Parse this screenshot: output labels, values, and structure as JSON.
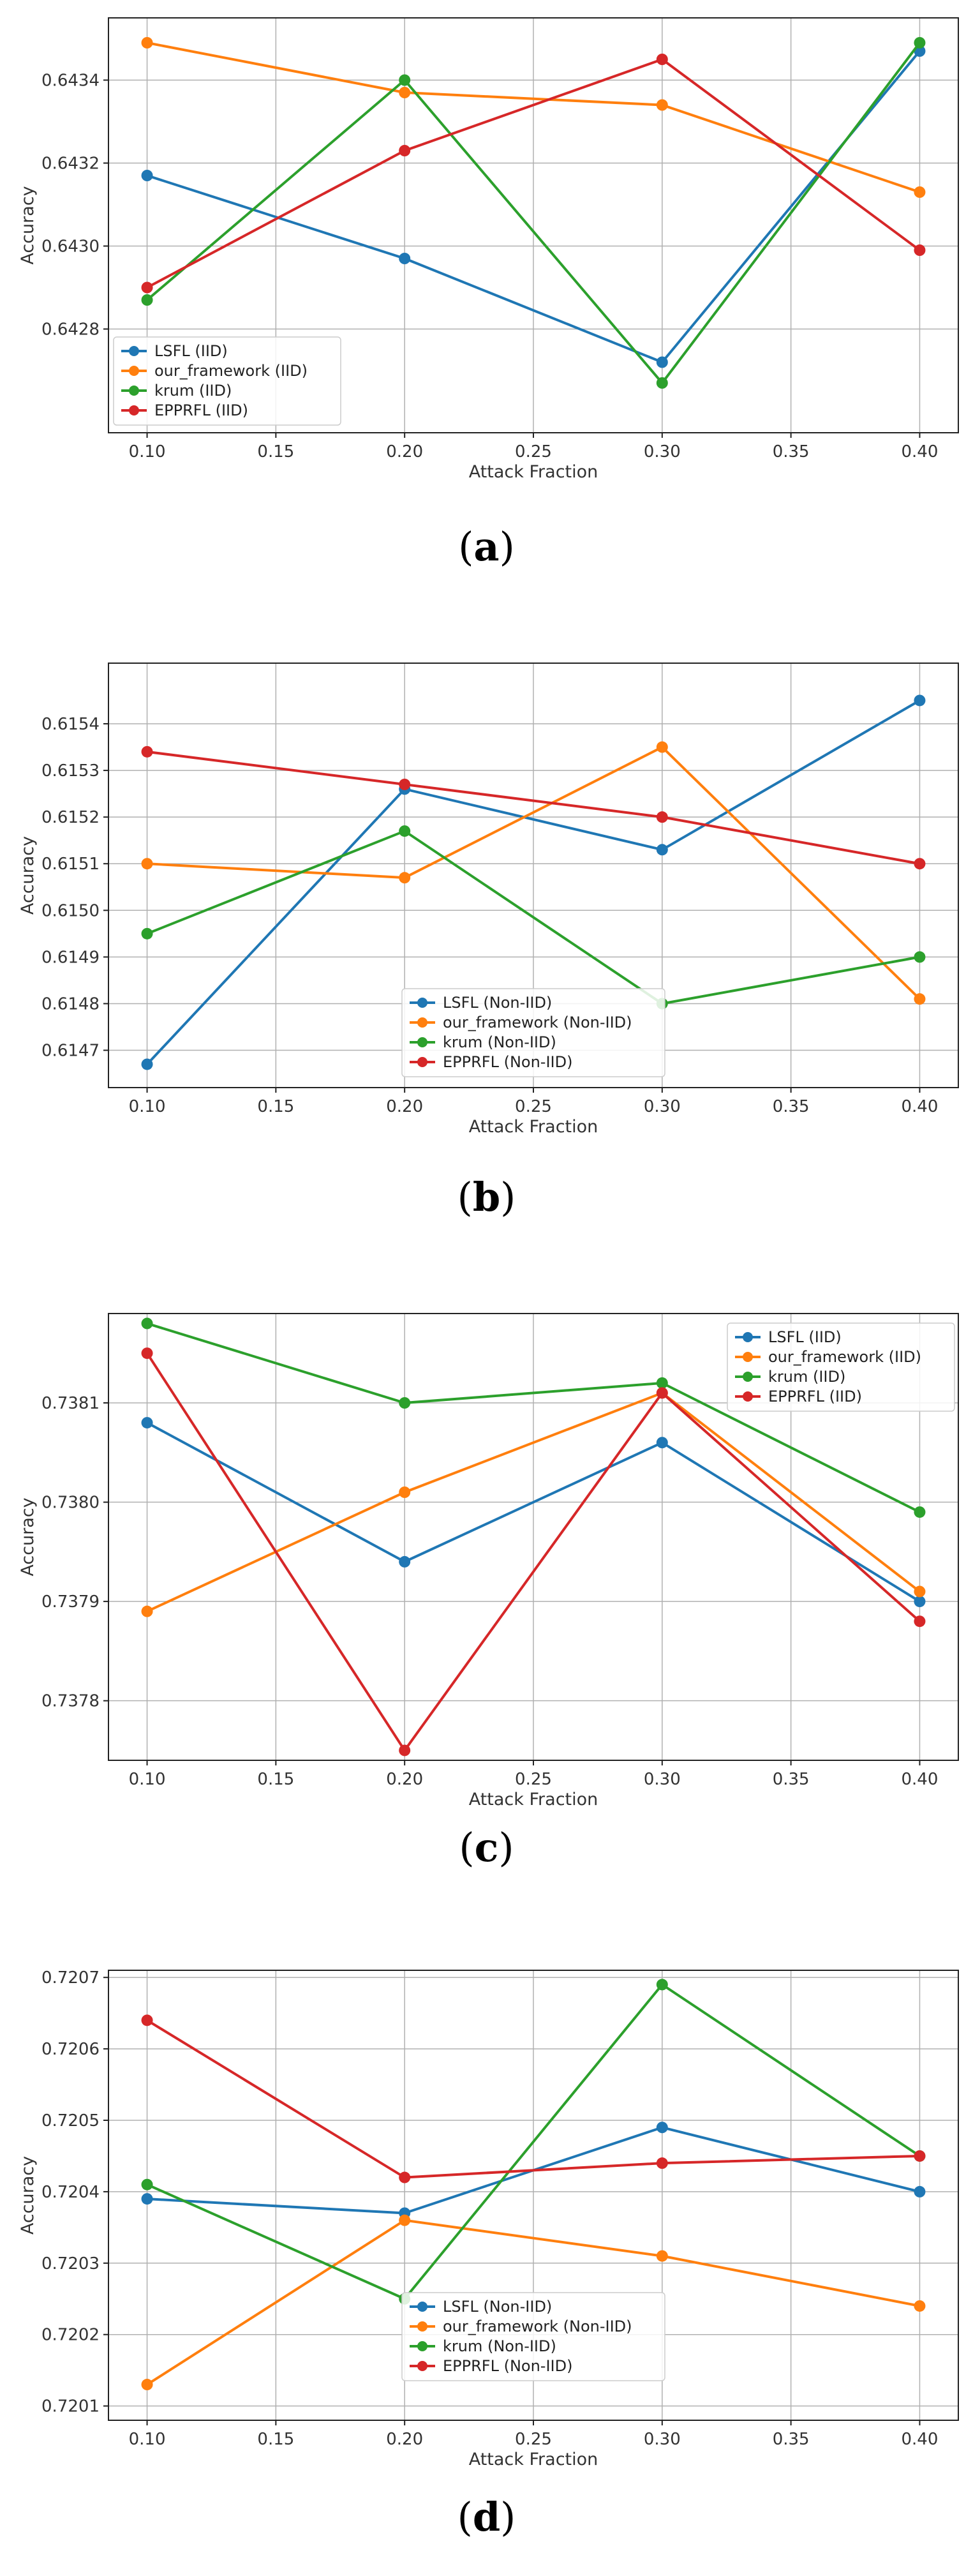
{
  "figure": {
    "panels": [
      {
        "label": "a"
      },
      {
        "label": "b"
      },
      {
        "label": "c"
      },
      {
        "label": "d"
      }
    ]
  },
  "chart_data": [
    {
      "type": "line",
      "panel": "a",
      "xlabel": "Attack Fraction",
      "ylabel": "Accuracy",
      "x": [
        0.1,
        0.2,
        0.3,
        0.4
      ],
      "xticks": [
        "0.10",
        "0.15",
        "0.20",
        "0.25",
        "0.30",
        "0.35",
        "0.40"
      ],
      "xtick_values": [
        0.1,
        0.15,
        0.2,
        0.25,
        0.3,
        0.35,
        0.4
      ],
      "xlim": [
        0.085,
        0.415
      ],
      "yticks": [
        "0.6428",
        "0.6430",
        "0.6432",
        "0.6434"
      ],
      "ytick_values": [
        0.6428,
        0.643,
        0.6432,
        0.6434
      ],
      "ylim": [
        0.64255,
        0.64355
      ],
      "grid": true,
      "legend_position": "lower-left",
      "series": [
        {
          "name": "LSFL (IID)",
          "color": "#1f77b4",
          "values": [
            0.64317,
            0.64297,
            0.64272,
            0.64347
          ]
        },
        {
          "name": "our_framework (IID)",
          "color": "#ff7f0e",
          "values": [
            0.64349,
            0.64337,
            0.64334,
            0.64313
          ]
        },
        {
          "name": "krum (IID)",
          "color": "#2ca02c",
          "values": [
            0.64287,
            0.6434,
            0.64267,
            0.64349
          ]
        },
        {
          "name": "EPPRFL (IID)",
          "color": "#d62728",
          "values": [
            0.6429,
            0.64323,
            0.64345,
            0.64299
          ]
        }
      ]
    },
    {
      "type": "line",
      "panel": "b",
      "xlabel": "Attack Fraction",
      "ylabel": "Accuracy",
      "x": [
        0.1,
        0.2,
        0.3,
        0.4
      ],
      "xticks": [
        "0.10",
        "0.15",
        "0.20",
        "0.25",
        "0.30",
        "0.35",
        "0.40"
      ],
      "xtick_values": [
        0.1,
        0.15,
        0.2,
        0.25,
        0.3,
        0.35,
        0.4
      ],
      "xlim": [
        0.085,
        0.415
      ],
      "yticks": [
        "0.6147",
        "0.6148",
        "0.6149",
        "0.6150",
        "0.6151",
        "0.6152",
        "0.6153",
        "0.6154"
      ],
      "ytick_values": [
        0.6147,
        0.6148,
        0.6149,
        0.615,
        0.6151,
        0.6152,
        0.6153,
        0.6154
      ],
      "ylim": [
        0.61462,
        0.61553
      ],
      "grid": true,
      "legend_position": "lower-center",
      "series": [
        {
          "name": "LSFL (Non-IID)",
          "color": "#1f77b4",
          "values": [
            0.61467,
            0.61526,
            0.61513,
            0.61545
          ]
        },
        {
          "name": "our_framework (Non-IID)",
          "color": "#ff7f0e",
          "values": [
            0.6151,
            0.61507,
            0.61535,
            0.61481
          ]
        },
        {
          "name": "krum (Non-IID)",
          "color": "#2ca02c",
          "values": [
            0.61495,
            0.61517,
            0.6148,
            0.6149
          ]
        },
        {
          "name": "EPPRFL (Non-IID)",
          "color": "#d62728",
          "values": [
            0.61534,
            0.61527,
            0.6152,
            0.6151
          ]
        }
      ]
    },
    {
      "type": "line",
      "panel": "c",
      "xlabel": "Attack Fraction",
      "ylabel": "Accuracy",
      "x": [
        0.1,
        0.2,
        0.3,
        0.4
      ],
      "xticks": [
        "0.10",
        "0.15",
        "0.20",
        "0.25",
        "0.30",
        "0.35",
        "0.40"
      ],
      "xtick_values": [
        0.1,
        0.15,
        0.2,
        0.25,
        0.3,
        0.35,
        0.4
      ],
      "xlim": [
        0.085,
        0.415
      ],
      "yticks": [
        "0.7378",
        "0.7379",
        "0.7380",
        "0.7381"
      ],
      "ytick_values": [
        0.7378,
        0.7379,
        0.738,
        0.7381
      ],
      "ylim": [
        0.73774,
        0.73819
      ],
      "grid": true,
      "legend_position": "upper-right",
      "series": [
        {
          "name": "LSFL (IID)",
          "color": "#1f77b4",
          "values": [
            0.73808,
            0.73794,
            0.73806,
            0.7379
          ]
        },
        {
          "name": "our_framework (IID)",
          "color": "#ff7f0e",
          "values": [
            0.73789,
            0.73801,
            0.73811,
            0.73791
          ]
        },
        {
          "name": "krum (IID)",
          "color": "#2ca02c",
          "values": [
            0.73818,
            0.7381,
            0.73812,
            0.73799
          ]
        },
        {
          "name": "EPPRFL (IID)",
          "color": "#d62728",
          "values": [
            0.73815,
            0.73775,
            0.73811,
            0.73788
          ]
        }
      ]
    },
    {
      "type": "line",
      "panel": "d",
      "xlabel": "Attack Fraction",
      "ylabel": "Accuracy",
      "x": [
        0.1,
        0.2,
        0.3,
        0.4
      ],
      "xticks": [
        "0.10",
        "0.15",
        "0.20",
        "0.25",
        "0.30",
        "0.35",
        "0.40"
      ],
      "xtick_values": [
        0.1,
        0.15,
        0.2,
        0.25,
        0.3,
        0.35,
        0.4
      ],
      "xlim": [
        0.085,
        0.415
      ],
      "yticks": [
        "0.7201",
        "0.7202",
        "0.7203",
        "0.7204",
        "0.7205",
        "0.7206",
        "0.7207"
      ],
      "ytick_values": [
        0.7201,
        0.7202,
        0.7203,
        0.7204,
        0.7205,
        0.7206,
        0.7207
      ],
      "ylim": [
        0.72008,
        0.72071
      ],
      "grid": true,
      "legend_position": "lower-center",
      "series": [
        {
          "name": "LSFL (Non-IID)",
          "color": "#1f77b4",
          "values": [
            0.72039,
            0.72037,
            0.72049,
            0.7204
          ]
        },
        {
          "name": "our_framework (Non-IID)",
          "color": "#ff7f0e",
          "values": [
            0.72013,
            0.72036,
            0.72031,
            0.72024
          ]
        },
        {
          "name": "krum (Non-IID)",
          "color": "#2ca02c",
          "values": [
            0.72041,
            0.72025,
            0.72069,
            0.72045
          ]
        },
        {
          "name": "EPPRFL (Non-IID)",
          "color": "#d62728",
          "values": [
            0.72064,
            0.72042,
            0.72044,
            0.72045
          ]
        }
      ]
    }
  ]
}
